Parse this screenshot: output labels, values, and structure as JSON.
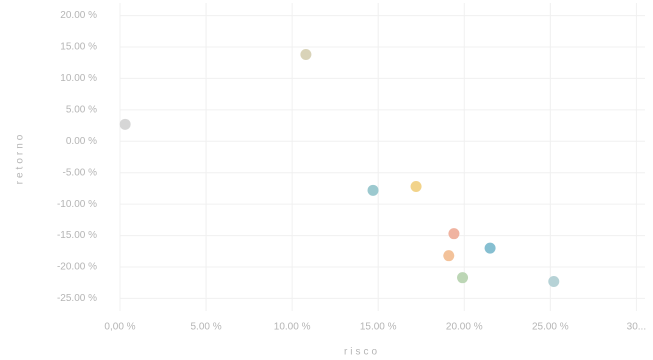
{
  "chart_data": {
    "type": "scatter",
    "x_label": "risco",
    "y_label": "retorno",
    "x": [
      0.3,
      10.8,
      14.7,
      17.2,
      19.4,
      19.1,
      21.5,
      19.9,
      25.2
    ],
    "values": [
      2.7,
      13.8,
      -7.8,
      -7.2,
      -14.7,
      -18.2,
      -17.0,
      -21.7,
      -22.3
    ],
    "colors": [
      "#d6d6d6",
      "#d9d3b8",
      "#9cc9cf",
      "#f2d38a",
      "#f0b3a0",
      "#f3c29a",
      "#86bfd1",
      "#bcd6b5",
      "#b6d2d6"
    ],
    "xlim": [
      0,
      30.5
    ],
    "ylim": [
      -27,
      22
    ],
    "xticks": [
      {
        "value": 0,
        "label": "0,00 %"
      },
      {
        "value": 5,
        "label": "5.00 %"
      },
      {
        "value": 10,
        "label": "10.00 %"
      },
      {
        "value": 15,
        "label": "15.00 %"
      },
      {
        "value": 20,
        "label": "20.00 %"
      },
      {
        "value": 25,
        "label": "25.00 %"
      },
      {
        "value": 30,
        "label": "30..."
      }
    ],
    "yticks": [
      {
        "value": 20,
        "label": "20.00 %"
      },
      {
        "value": 15,
        "label": "15.00 %"
      },
      {
        "value": 10,
        "label": "10.00 %"
      },
      {
        "value": 5,
        "label": "5.00 %"
      },
      {
        "value": 0,
        "label": "0.00 %"
      },
      {
        "value": -5,
        "label": "-5.00 %"
      },
      {
        "value": -10,
        "label": "-10.00 %"
      },
      {
        "value": -15,
        "label": "-15.00 %"
      },
      {
        "value": -20,
        "label": "-20.00 %"
      },
      {
        "value": -25,
        "label": "-25.00 %"
      }
    ],
    "grid": true
  }
}
